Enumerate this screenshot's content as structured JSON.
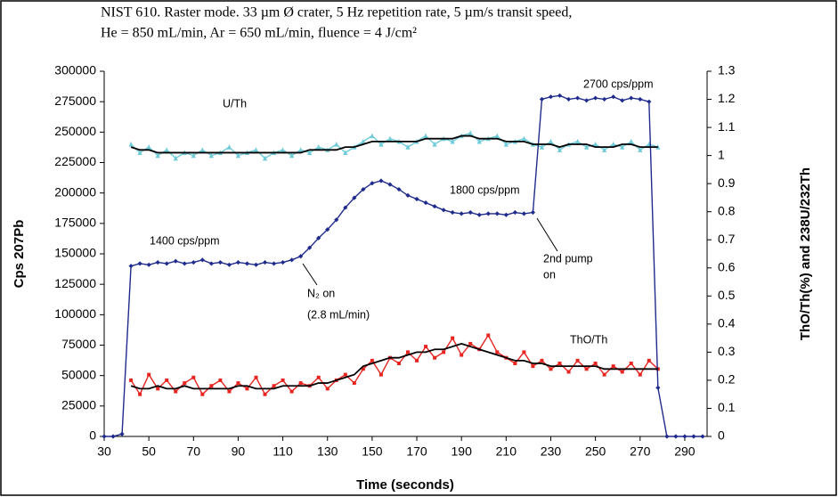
{
  "chart_data": {
    "type": "line",
    "title_lines": [
      "NIST 610. Raster mode.  33 µm Ø crater, 5 Hz repetition rate, 5 µm/s transit speed,",
      "He = 850 mL/min, Ar = 650 mL/min, fluence = 4 J/cm²"
    ],
    "x_label": "Time (seconds)",
    "y_label": "Cps 207Pb",
    "y2_label": "ThO/Th(%) and 238U/232Th",
    "annotations": [
      "U/Th",
      "1400 cps/ppm",
      "1800 cps/ppm",
      "2700 cps/ppm",
      "N₂ on",
      "(2.8 mL/min)",
      "2nd pump",
      "on",
      "ThO/Th"
    ],
    "xlim": [
      30,
      300
    ],
    "xticks": [
      30,
      50,
      70,
      90,
      110,
      130,
      150,
      170,
      190,
      210,
      230,
      250,
      270,
      290
    ],
    "ylim": [
      0,
      300000
    ],
    "yticks": [
      0,
      25000,
      50000,
      75000,
      100000,
      125000,
      150000,
      175000,
      200000,
      225000,
      250000,
      275000,
      300000
    ],
    "y2lim": [
      0,
      1.3
    ],
    "y2ticks": [
      0,
      0.1,
      0.2,
      0.3,
      0.4,
      0.5,
      0.6,
      0.7,
      0.8,
      0.9,
      1,
      1.1,
      1.2,
      1.3
    ],
    "x": [
      30,
      34,
      38,
      42,
      46,
      50,
      54,
      58,
      62,
      66,
      70,
      74,
      78,
      82,
      86,
      90,
      94,
      98,
      102,
      106,
      110,
      114,
      118,
      122,
      126,
      130,
      134,
      138,
      142,
      146,
      150,
      154,
      158,
      162,
      166,
      170,
      174,
      178,
      182,
      186,
      190,
      194,
      198,
      202,
      206,
      210,
      214,
      218,
      222,
      226,
      230,
      234,
      238,
      242,
      246,
      250,
      254,
      258,
      262,
      266,
      270,
      274,
      278,
      282,
      286,
      290,
      294,
      298
    ],
    "series": [
      {
        "color": "#6fcbd8",
        "axis": "y2",
        "marker": "triangle",
        "values": [
          null,
          null,
          null,
          1.04,
          1.01,
          1.03,
          1.0,
          1.02,
          0.99,
          1.01,
          1.0,
          1.02,
          1.0,
          1.01,
          1.03,
          1.0,
          1.01,
          1.02,
          0.99,
          1.01,
          1.02,
          1.0,
          1.02,
          1.01,
          1.03,
          1.02,
          1.04,
          1.01,
          1.03,
          1.05,
          1.07,
          1.04,
          1.06,
          1.05,
          1.03,
          1.05,
          1.07,
          1.04,
          1.06,
          1.05,
          1.07,
          1.08,
          1.05,
          1.06,
          1.07,
          1.04,
          1.05,
          1.06,
          1.04,
          1.03,
          1.05,
          1.02,
          1.04,
          1.05,
          1.03,
          1.04,
          1.02,
          1.04,
          1.03,
          1.05,
          1.02,
          1.04,
          1.03,
          null,
          null,
          null,
          null,
          null
        ]
      },
      {
        "color": "#e8241f",
        "axis": "y2",
        "marker": "square",
        "values": [
          null,
          null,
          null,
          0.2,
          0.15,
          0.22,
          0.17,
          0.2,
          0.16,
          0.19,
          0.21,
          0.15,
          0.18,
          0.2,
          0.16,
          0.19,
          0.17,
          0.21,
          0.15,
          0.18,
          0.2,
          0.16,
          0.19,
          0.18,
          0.21,
          0.17,
          0.2,
          0.22,
          0.19,
          0.24,
          0.27,
          0.22,
          0.28,
          0.26,
          0.3,
          0.27,
          0.32,
          0.28,
          0.3,
          0.35,
          0.29,
          0.33,
          0.31,
          0.36,
          0.3,
          0.28,
          0.26,
          0.3,
          0.25,
          0.27,
          0.24,
          0.26,
          0.23,
          0.27,
          0.24,
          0.26,
          0.22,
          0.25,
          0.23,
          0.26,
          0.22,
          0.27,
          0.24,
          null,
          null,
          null,
          null,
          null
        ]
      },
      {
        "color": "#1f2b8c",
        "axis": "y",
        "marker": "diamond",
        "values": [
          0,
          0,
          2000,
          140000,
          142000,
          141000,
          143000,
          142000,
          144000,
          142000,
          143000,
          145000,
          142000,
          143000,
          141000,
          143000,
          142000,
          141000,
          143000,
          142000,
          143000,
          145000,
          148000,
          155000,
          163000,
          170000,
          178000,
          188000,
          196000,
          203000,
          208000,
          210000,
          207000,
          203000,
          198000,
          195000,
          192000,
          189000,
          186000,
          184000,
          183000,
          184000,
          182000,
          183000,
          183000,
          182000,
          184000,
          183000,
          184000,
          277000,
          279000,
          280000,
          277000,
          278000,
          276000,
          278000,
          277000,
          279000,
          276000,
          278000,
          277000,
          275000,
          40000,
          0,
          0,
          0,
          0,
          0
        ]
      },
      {
        "color": "#000000",
        "axis": "y2",
        "marker": "none",
        "values": [
          null,
          null,
          null,
          1.03,
          1.02,
          1.02,
          1.01,
          1.01,
          1.01,
          1.01,
          1.01,
          1.01,
          1.01,
          1.01,
          1.01,
          1.01,
          1.01,
          1.01,
          1.01,
          1.01,
          1.01,
          1.01,
          1.01,
          1.02,
          1.02,
          1.02,
          1.02,
          1.03,
          1.03,
          1.04,
          1.05,
          1.05,
          1.05,
          1.05,
          1.05,
          1.05,
          1.06,
          1.06,
          1.06,
          1.06,
          1.07,
          1.07,
          1.06,
          1.06,
          1.06,
          1.05,
          1.05,
          1.05,
          1.04,
          1.04,
          1.04,
          1.03,
          1.04,
          1.04,
          1.04,
          1.03,
          1.03,
          1.03,
          1.04,
          1.04,
          1.03,
          1.03,
          1.03,
          null,
          null,
          null,
          null,
          null
        ]
      },
      {
        "color": "#000000",
        "axis": "y2",
        "marker": "none",
        "values": [
          null,
          null,
          null,
          0.18,
          0.17,
          0.17,
          0.18,
          0.17,
          0.17,
          0.18,
          0.17,
          0.17,
          0.17,
          0.17,
          0.17,
          0.18,
          0.18,
          0.17,
          0.17,
          0.17,
          0.18,
          0.18,
          0.18,
          0.18,
          0.19,
          0.19,
          0.2,
          0.21,
          0.22,
          0.25,
          0.26,
          0.27,
          0.28,
          0.28,
          0.29,
          0.3,
          0.3,
          0.31,
          0.31,
          0.32,
          0.33,
          0.32,
          0.31,
          0.3,
          0.29,
          0.28,
          0.27,
          0.27,
          0.26,
          0.26,
          0.25,
          0.25,
          0.25,
          0.25,
          0.25,
          0.25,
          0.24,
          0.24,
          0.24,
          0.24,
          0.24,
          0.24,
          0.24,
          null,
          null,
          null,
          null,
          null
        ]
      }
    ]
  }
}
